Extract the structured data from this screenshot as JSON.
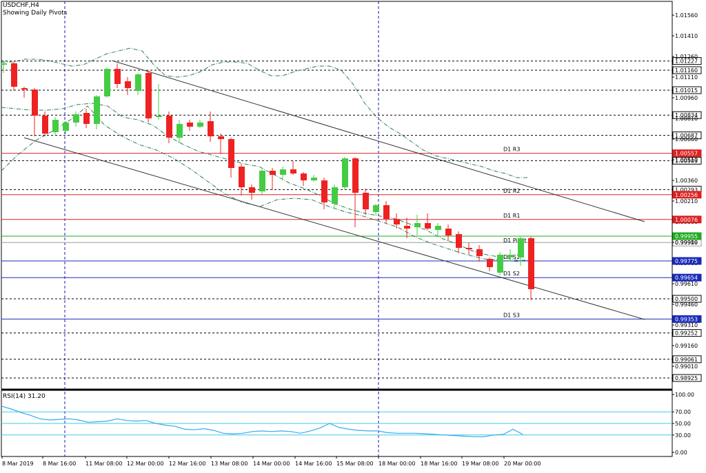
{
  "header": {
    "symbol": "USDCHF,H4",
    "subtitle": "Showing Daily Pivots"
  },
  "rsi": {
    "label": "RSI(14) 31.20",
    "levels": [
      "100.00",
      "70.00",
      "50.00",
      "30.00",
      "0.00"
    ]
  },
  "colors": {
    "bull": "#44cc44",
    "bear": "#ee2222",
    "pivot_green": "#22aa22",
    "resistance": "#dd2222",
    "support": "#1a2bb8",
    "rsi_line": "#33aaee",
    "rsi_level": "#40c8e8",
    "envelope": "#2a7d55",
    "channel": "#333333",
    "grid": "#1a1aaa"
  },
  "chart_data": {
    "type": "candlestick",
    "instrument": "USDCHF",
    "timeframe": "H4",
    "x_tick_labels": [
      "8 Mar 2019",
      "8 Mar 16:00",
      "11 Mar 08:00",
      "12 Mar 00:00",
      "12 Mar 16:00",
      "13 Mar 08:00",
      "14 Mar 00:00",
      "14 Mar 16:00",
      "15 Mar 08:00",
      "18 Mar 00:00",
      "18 Mar 16:00",
      "19 Mar 08:00",
      "20 Mar 00:00"
    ],
    "y_tick_labels": [
      "1.01560",
      "1.01410",
      "1.01260",
      "1.01110",
      "1.00960",
      "1.00810",
      "1.00660",
      "1.00510",
      "1.00360",
      "1.00210",
      "1.00060",
      "0.99910",
      "0.99760",
      "0.99610",
      "0.99460",
      "0.99310",
      "0.99160",
      "0.99010"
    ],
    "ylim": [
      0.98845,
      1.0166
    ],
    "price_levels": [
      "1.01227",
      "1.01160",
      "1.01015",
      "1.00834",
      "1.00687",
      "1.00503",
      "1.00293",
      "0.99909",
      "0.99500",
      "0.99252",
      "0.99061",
      "0.98925"
    ],
    "pivots": [
      {
        "name": "D1 R3",
        "value": "1.00557",
        "kind": "resistance"
      },
      {
        "name": "D1 R2",
        "value": "1.00256",
        "kind": "resistance"
      },
      {
        "name": "D1 R1",
        "value": "1.00076",
        "kind": "resistance"
      },
      {
        "name": "D1 Pivot",
        "value": "0.99955",
        "kind": "pivot"
      },
      {
        "name": "D1 S1",
        "value": "0.99775",
        "kind": "support"
      },
      {
        "name": "D1 S2",
        "value": "0.99654",
        "kind": "support"
      },
      {
        "name": "D1 S3",
        "value": "0.99353",
        "kind": "support"
      }
    ],
    "candles": [
      {
        "o": 1.012,
        "h": 1.0123,
        "l": 1.0114,
        "c": 1.0121
      },
      {
        "o": 1.0121,
        "h": 1.0122,
        "l": 1.0101,
        "c": 1.0104
      },
      {
        "o": 1.0103,
        "h": 1.0104,
        "l": 1.0096,
        "c": 1.0102
      },
      {
        "o": 1.0102,
        "h": 1.0103,
        "l": 1.0068,
        "c": 1.0083
      },
      {
        "o": 1.0083,
        "h": 1.0086,
        "l": 1.0068,
        "c": 1.007
      },
      {
        "o": 1.0071,
        "h": 1.0082,
        "l": 1.0069,
        "c": 1.008
      },
      {
        "o": 1.0072,
        "h": 1.0079,
        "l": 1.007,
        "c": 1.0078
      },
      {
        "o": 1.0078,
        "h": 1.0086,
        "l": 1.0075,
        "c": 1.0084
      },
      {
        "o": 1.0085,
        "h": 1.0088,
        "l": 1.0074,
        "c": 1.0077
      },
      {
        "o": 1.0077,
        "h": 1.0098,
        "l": 1.0073,
        "c": 1.0097
      },
      {
        "o": 1.0097,
        "h": 1.0118,
        "l": 1.0096,
        "c": 1.0117
      },
      {
        "o": 1.0117,
        "h": 1.0121,
        "l": 1.0103,
        "c": 1.0106
      },
      {
        "o": 1.0108,
        "h": 1.0111,
        "l": 1.0098,
        "c": 1.0103
      },
      {
        "o": 1.0101,
        "h": 1.0114,
        "l": 1.0098,
        "c": 1.0113
      },
      {
        "o": 1.0114,
        "h": 1.0116,
        "l": 1.0078,
        "c": 1.0081
      },
      {
        "o": 1.0082,
        "h": 1.0106,
        "l": 1.008,
        "c": 1.0083
      },
      {
        "o": 1.0083,
        "h": 1.0086,
        "l": 1.0063,
        "c": 1.0067
      },
      {
        "o": 1.0067,
        "h": 1.008,
        "l": 1.0063,
        "c": 1.0077
      },
      {
        "o": 1.0078,
        "h": 1.008,
        "l": 1.0072,
        "c": 1.0075
      },
      {
        "o": 1.0075,
        "h": 1.008,
        "l": 1.0074,
        "c": 1.0078
      },
      {
        "o": 1.0079,
        "h": 1.0086,
        "l": 1.0064,
        "c": 1.0068
      },
      {
        "o": 1.0068,
        "h": 1.007,
        "l": 1.0055,
        "c": 1.0066
      },
      {
        "o": 1.0066,
        "h": 1.0067,
        "l": 1.0038,
        "c": 1.0045
      },
      {
        "o": 1.0046,
        "h": 1.0048,
        "l": 1.0025,
        "c": 1.0031
      },
      {
        "o": 1.0031,
        "h": 1.0033,
        "l": 1.0022,
        "c": 1.0027
      },
      {
        "o": 1.0028,
        "h": 1.0044,
        "l": 1.0026,
        "c": 1.0043
      },
      {
        "o": 1.0043,
        "h": 1.0045,
        "l": 1.0029,
        "c": 1.004
      },
      {
        "o": 1.004,
        "h": 1.0046,
        "l": 1.0036,
        "c": 1.0044
      },
      {
        "o": 1.0044,
        "h": 1.005,
        "l": 1.004,
        "c": 1.0041
      },
      {
        "o": 1.0041,
        "h": 1.0042,
        "l": 1.0032,
        "c": 1.0036
      },
      {
        "o": 1.0036,
        "h": 1.004,
        "l": 1.0035,
        "c": 1.0038
      },
      {
        "o": 1.0036,
        "h": 1.0038,
        "l": 1.0015,
        "c": 1.002
      },
      {
        "o": 1.0019,
        "h": 1.0033,
        "l": 1.0016,
        "c": 1.0031
      },
      {
        "o": 1.0031,
        "h": 1.0053,
        "l": 1.0029,
        "c": 1.0052
      },
      {
        "o": 1.0052,
        "h": 1.0053,
        "l": 1.0002,
        "c": 1.0027
      },
      {
        "o": 1.0027,
        "h": 1.003,
        "l": 1.0011,
        "c": 1.0015
      },
      {
        "o": 1.0013,
        "h": 1.0019,
        "l": 1.0011,
        "c": 1.0018
      },
      {
        "o": 1.0018,
        "h": 1.0021,
        "l": 1.0005,
        "c": 1.0008
      },
      {
        "o": 1.0008,
        "h": 1.0012,
        "l": 1.0001,
        "c": 1.0004
      },
      {
        "o": 1.0003,
        "h": 1.0009,
        "l": 0.9994,
        "c": 1.0001
      },
      {
        "o": 1.0002,
        "h": 1.0011,
        "l": 0.9996,
        "c": 1.0005
      },
      {
        "o": 1.0005,
        "h": 1.0012,
        "l": 1.0,
        "c": 1.0001
      },
      {
        "o": 1.0,
        "h": 1.0005,
        "l": 0.9996,
        "c": 1.0003
      },
      {
        "o": 1.0001,
        "h": 1.0004,
        "l": 0.9992,
        "c": 0.9996
      },
      {
        "o": 0.9997,
        "h": 0.9999,
        "l": 0.9983,
        "c": 0.9987
      },
      {
        "o": 0.9987,
        "h": 0.9991,
        "l": 0.9982,
        "c": 0.9986
      },
      {
        "o": 0.9986,
        "h": 0.9989,
        "l": 0.9977,
        "c": 0.9981
      },
      {
        "o": 0.9979,
        "h": 0.998,
        "l": 0.997,
        "c": 0.9973
      },
      {
        "o": 0.9969,
        "h": 0.9984,
        "l": 0.9967,
        "c": 0.9982
      },
      {
        "o": 0.998,
        "h": 0.9986,
        "l": 0.9977,
        "c": 0.9982
      },
      {
        "o": 0.998,
        "h": 0.9995,
        "l": 0.9974,
        "c": 0.9994
      },
      {
        "o": 0.9994,
        "h": 0.9995,
        "l": 0.9949,
        "c": 0.9957
      }
    ],
    "channel_upper": [
      {
        "i": 10.5,
        "y": 1.0123
      },
      {
        "i": 62.0,
        "y": 1.0006
      }
    ],
    "channel_lower": [
      {
        "i": 2.0,
        "y": 1.0067
      },
      {
        "i": 62.0,
        "y": 0.9935
      }
    ],
    "envelope_upper": [
      1.0122,
      1.0122,
      1.0124,
      1.0124,
      1.0123,
      1.0121,
      1.0119,
      1.012,
      1.0124,
      1.0128,
      1.013,
      1.0132,
      1.013,
      1.012,
      1.0112,
      1.0111,
      1.0112,
      1.0115,
      1.012,
      1.0122,
      1.0122,
      1.0121,
      1.0116,
      1.0112,
      1.0112,
      1.0115,
      1.0117,
      1.0119,
      1.0119,
      1.0116,
      1.0106,
      1.0092,
      1.0082,
      1.0075,
      1.007,
      1.0064,
      1.0058,
      1.0054,
      1.0052,
      1.005,
      1.0048,
      1.0046,
      1.0043,
      1.0041,
      1.0038,
      1.0038
    ],
    "envelope_middle": [
      1.0089,
      1.0088,
      1.0087,
      1.0087,
      1.0088,
      1.0091,
      1.0092,
      1.009,
      1.0082,
      1.008,
      1.0076,
      1.0068,
      1.0062,
      1.0057,
      1.0054,
      1.0051,
      1.0048,
      1.0046,
      1.004,
      1.0034,
      1.003,
      1.0025,
      1.0019,
      1.0015,
      1.0012,
      1.001,
      1.0008,
      1.0004,
      1.0,
      0.9994,
      0.999,
      0.9985,
      0.9982,
      0.998,
      0.9978,
      0.9978
    ],
    "envelope_lower": [
      1.0043,
      1.0055,
      1.0065,
      1.0072,
      1.008,
      1.009,
      1.0076,
      1.0068,
      1.0062,
      1.0058,
      1.0052,
      1.0044,
      1.0035,
      1.0026,
      1.002,
      1.0017,
      1.0022,
      1.0023,
      1.0022,
      1.0017,
      1.0013,
      1.001,
      1.0006,
      1.0002,
      0.9995,
      0.999,
      0.9986,
      0.9982,
      0.9979,
      0.9978,
      0.9977
    ],
    "rsi_values": [
      80,
      75,
      69,
      64,
      58,
      56,
      57,
      58,
      56,
      52,
      53,
      54,
      58,
      55,
      54,
      55,
      50,
      47,
      45,
      40,
      39,
      41,
      38,
      33,
      32,
      33,
      36,
      37,
      36,
      37,
      36,
      33,
      37,
      42,
      50,
      43,
      40,
      38,
      37,
      37,
      34,
      33,
      33,
      33,
      32,
      31,
      30,
      29,
      28,
      27,
      27,
      30,
      31,
      40,
      31.2
    ]
  }
}
